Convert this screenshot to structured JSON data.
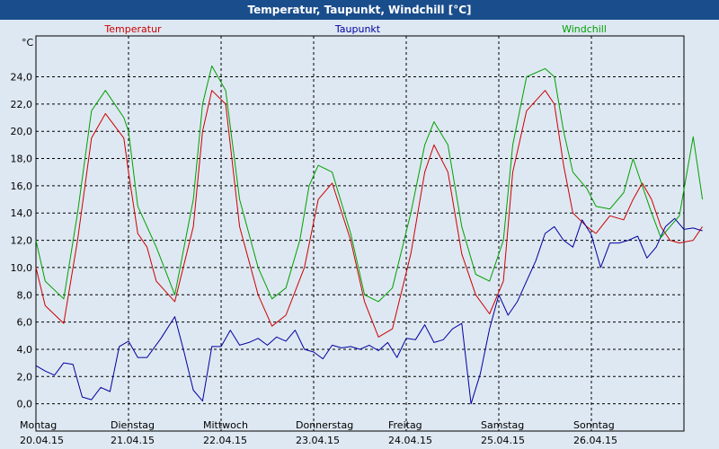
{
  "window": {
    "title": "Temperatur, Taupunkt, Windchill [°C]"
  },
  "colors": {
    "background": "#dee8f2",
    "titlebar": "#1a4d8c",
    "temperatur": "#cc0000",
    "taupunkt": "#00009f",
    "windchill": "#00a000",
    "grid": "#000000"
  },
  "chart_data": {
    "type": "line",
    "title": "Temperatur, Taupunkt, Windchill [°C]",
    "ylabel": "°C",
    "xlabel": "",
    "ylim": [
      -2,
      27
    ],
    "xlim": [
      0,
      7.2
    ],
    "yticks": [
      0,
      2,
      4,
      6,
      8,
      10,
      12,
      14,
      16,
      18,
      20,
      22,
      24
    ],
    "ytick_labels": [
      "0,0",
      "2,0",
      "4,0",
      "6,0",
      "8,0",
      "10,0",
      "12,0",
      "14,0",
      "16,0",
      "18,0",
      "20,0",
      "22,0",
      "24,0"
    ],
    "grid": true,
    "legend_position": "top",
    "xticks": [
      {
        "day": "Montag",
        "date": "20.04.15",
        "x": 0
      },
      {
        "day": "Dienstag",
        "date": "21.04.15",
        "x": 1
      },
      {
        "day": "Mittwoch",
        "date": "22.04.15",
        "x": 2
      },
      {
        "day": "Donnerstag",
        "date": "23.04.15",
        "x": 3
      },
      {
        "day": "Freitag",
        "date": "24.04.15",
        "x": 4
      },
      {
        "day": "Samstag",
        "date": "25.04.15",
        "x": 5
      },
      {
        "day": "Sonntag",
        "date": "26.04.15",
        "x": 6
      }
    ],
    "series": [
      {
        "name": "Temperatur",
        "color": "#cc0000",
        "x": [
          0,
          0.1,
          0.3,
          0.45,
          0.6,
          0.75,
          0.95,
          1.0,
          1.1,
          1.2,
          1.3,
          1.5,
          1.7,
          1.8,
          1.9,
          2.05,
          2.2,
          2.4,
          2.55,
          2.7,
          2.9,
          3.05,
          3.2,
          3.4,
          3.55,
          3.7,
          3.85,
          4.05,
          4.2,
          4.3,
          4.45,
          4.6,
          4.75,
          4.9,
          5.05,
          5.15,
          5.3,
          5.5,
          5.6,
          5.7,
          5.8,
          5.95,
          6.05,
          6.2,
          6.35,
          6.45,
          6.55,
          6.65,
          6.75,
          6.85,
          6.95,
          7.1,
          7.2
        ],
        "values": [
          10.0,
          7.2,
          5.9,
          12.0,
          19.5,
          21.3,
          19.5,
          17.0,
          12.5,
          11.5,
          9.0,
          7.5,
          13.0,
          20.0,
          23.0,
          22.0,
          13.0,
          8.0,
          5.7,
          6.5,
          10.0,
          15.0,
          16.2,
          12.0,
          7.5,
          4.9,
          5.5,
          11.0,
          17.0,
          19.0,
          17.0,
          11.0,
          8.0,
          6.6,
          9.0,
          17.0,
          21.5,
          23.0,
          22.0,
          17.5,
          14.0,
          13.0,
          12.5,
          13.8,
          13.5,
          15.0,
          16.2,
          15.0,
          13.0,
          12.0,
          11.8,
          12.0,
          13.0
        ]
      },
      {
        "name": "Taupunkt",
        "color": "#00009f",
        "x": [
          0,
          0.1,
          0.2,
          0.3,
          0.4,
          0.5,
          0.6,
          0.7,
          0.8,
          0.9,
          1.0,
          1.1,
          1.2,
          1.35,
          1.5,
          1.6,
          1.7,
          1.8,
          1.9,
          2.0,
          2.1,
          2.2,
          2.3,
          2.4,
          2.5,
          2.6,
          2.7,
          2.8,
          2.9,
          3.0,
          3.1,
          3.2,
          3.3,
          3.4,
          3.5,
          3.6,
          3.7,
          3.8,
          3.9,
          4.0,
          4.1,
          4.2,
          4.3,
          4.4,
          4.5,
          4.6,
          4.7,
          4.8,
          4.9,
          5.0,
          5.1,
          5.2,
          5.3,
          5.4,
          5.5,
          5.6,
          5.7,
          5.8,
          5.9,
          6.0,
          6.1,
          6.2,
          6.3,
          6.4,
          6.5,
          6.6,
          6.7,
          6.8,
          6.9,
          7.0,
          7.1,
          7.2
        ],
        "values": [
          2.8,
          2.4,
          2.1,
          3.0,
          2.9,
          0.5,
          0.3,
          1.2,
          0.9,
          4.2,
          4.6,
          3.4,
          3.4,
          4.8,
          6.4,
          3.8,
          1.0,
          0.2,
          4.2,
          4.2,
          5.4,
          4.3,
          4.5,
          4.8,
          4.3,
          4.9,
          4.6,
          5.4,
          4.0,
          3.8,
          3.3,
          4.3,
          4.1,
          4.2,
          4.0,
          4.3,
          3.9,
          4.5,
          3.4,
          4.8,
          4.7,
          5.8,
          4.5,
          4.7,
          5.5,
          5.9,
          0.0,
          2.2,
          5.5,
          8.0,
          6.5,
          7.5,
          9.0,
          10.5,
          12.5,
          13.0,
          12.0,
          11.5,
          13.5,
          12.4,
          10.0,
          11.8,
          11.8,
          12.0,
          12.3,
          10.7,
          11.5,
          13.0,
          13.6,
          12.8,
          12.9,
          12.7
        ]
      },
      {
        "name": "Windchill",
        "color": "#00a000",
        "x": [
          0,
          0.1,
          0.3,
          0.45,
          0.6,
          0.75,
          0.95,
          1.0,
          1.1,
          1.2,
          1.3,
          1.5,
          1.7,
          1.8,
          1.9,
          2.05,
          2.2,
          2.4,
          2.55,
          2.7,
          2.85,
          2.95,
          3.05,
          3.2,
          3.4,
          3.55,
          3.7,
          3.85,
          4.05,
          4.2,
          4.3,
          4.45,
          4.6,
          4.75,
          4.9,
          5.05,
          5.15,
          5.3,
          5.5,
          5.6,
          5.7,
          5.8,
          5.95,
          6.05,
          6.2,
          6.35,
          6.45,
          6.55,
          6.65,
          6.75,
          6.85,
          6.95,
          7.1,
          7.2
        ],
        "values": [
          12.0,
          9.0,
          7.7,
          14.0,
          21.5,
          23.0,
          21.0,
          20.0,
          14.5,
          13.0,
          11.5,
          8.0,
          15.0,
          22.0,
          24.8,
          23.0,
          15.0,
          10.0,
          7.7,
          8.5,
          12.0,
          16.0,
          17.5,
          17.0,
          12.5,
          8.0,
          7.5,
          8.5,
          14.0,
          19.0,
          20.7,
          19.0,
          13.0,
          9.5,
          9.0,
          12.0,
          19.0,
          24.0,
          24.6,
          24.0,
          20.0,
          17.0,
          15.8,
          14.5,
          14.3,
          15.5,
          18.0,
          16.0,
          14.0,
          12.2,
          13.0,
          13.8,
          19.6,
          15.0
        ]
      }
    ]
  }
}
